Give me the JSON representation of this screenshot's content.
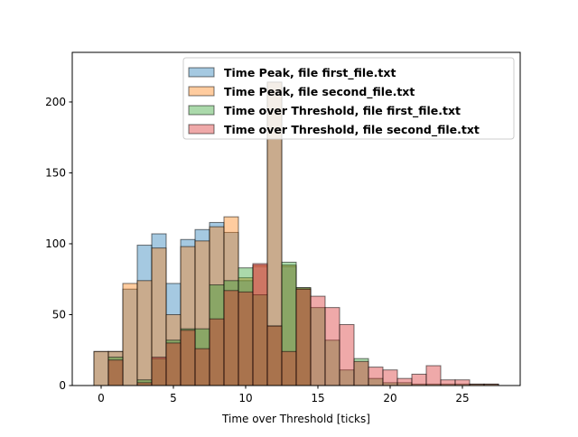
{
  "chart_data": {
    "type": "bar",
    "subtype": "overlapping-histogram",
    "xlabel": "Time over Threshold [ticks]",
    "ylabel": "",
    "title": "",
    "xlim": [
      -2,
      29
    ],
    "ylim": [
      0,
      235
    ],
    "xticks": [
      0,
      5,
      10,
      15,
      20,
      25
    ],
    "yticks": [
      0,
      50,
      100,
      150,
      200
    ],
    "bin_width": 1,
    "legend_position": "upper-right",
    "grid": false,
    "series": [
      {
        "name": "Time Peak, file first_file.txt",
        "color": "#1f77b4",
        "bins": [
          {
            "x": 0,
            "value": 24
          },
          {
            "x": 1,
            "value": 24
          },
          {
            "x": 2,
            "value": 68
          },
          {
            "x": 3,
            "value": 99
          },
          {
            "x": 4,
            "value": 107
          },
          {
            "x": 5,
            "value": 72
          },
          {
            "x": 6,
            "value": 103
          },
          {
            "x": 7,
            "value": 110
          },
          {
            "x": 8,
            "value": 115
          },
          {
            "x": 9,
            "value": 108
          },
          {
            "x": 10,
            "value": 74
          },
          {
            "x": 11,
            "value": 84
          },
          {
            "x": 12,
            "value": 214
          },
          {
            "x": 13,
            "value": 84
          },
          {
            "x": 14,
            "value": 68
          }
        ]
      },
      {
        "name": "Time Peak, file second_file.txt",
        "color": "#ff7f0e",
        "bins": [
          {
            "x": 0,
            "value": 24
          },
          {
            "x": 1,
            "value": 24
          },
          {
            "x": 2,
            "value": 72
          },
          {
            "x": 3,
            "value": 74
          },
          {
            "x": 4,
            "value": 97
          },
          {
            "x": 5,
            "value": 50
          },
          {
            "x": 6,
            "value": 98
          },
          {
            "x": 7,
            "value": 102
          },
          {
            "x": 8,
            "value": 112
          },
          {
            "x": 9,
            "value": 119
          },
          {
            "x": 10,
            "value": 76
          },
          {
            "x": 11,
            "value": 85
          },
          {
            "x": 12,
            "value": 214
          },
          {
            "x": 13,
            "value": 85
          },
          {
            "x": 14,
            "value": 69
          }
        ]
      },
      {
        "name": "Time over Threshold, file first_file.txt",
        "color": "#2ca02c",
        "bins": [
          {
            "x": 1,
            "value": 20
          },
          {
            "x": 3,
            "value": 4
          },
          {
            "x": 4,
            "value": 19
          },
          {
            "x": 5,
            "value": 32
          },
          {
            "x": 6,
            "value": 40
          },
          {
            "x": 7,
            "value": 40
          },
          {
            "x": 8,
            "value": 71
          },
          {
            "x": 9,
            "value": 74
          },
          {
            "x": 10,
            "value": 83
          },
          {
            "x": 11,
            "value": 64
          },
          {
            "x": 12,
            "value": 42
          },
          {
            "x": 13,
            "value": 87
          },
          {
            "x": 14,
            "value": 69
          },
          {
            "x": 15,
            "value": 55
          },
          {
            "x": 16,
            "value": 32
          },
          {
            "x": 17,
            "value": 11
          },
          {
            "x": 18,
            "value": 19
          },
          {
            "x": 19,
            "value": 5
          },
          {
            "x": 20,
            "value": 2
          },
          {
            "x": 21,
            "value": 2
          },
          {
            "x": 22,
            "value": 1
          },
          {
            "x": 23,
            "value": 1
          },
          {
            "x": 24,
            "value": 1
          },
          {
            "x": 25,
            "value": 1
          },
          {
            "x": 26,
            "value": 1
          },
          {
            "x": 27,
            "value": 1
          }
        ]
      },
      {
        "name": "Time over Threshold, file second_file.txt",
        "color": "#d62728",
        "bins": [
          {
            "x": 1,
            "value": 18
          },
          {
            "x": 3,
            "value": 2
          },
          {
            "x": 4,
            "value": 20
          },
          {
            "x": 5,
            "value": 30
          },
          {
            "x": 6,
            "value": 39
          },
          {
            "x": 7,
            "value": 26
          },
          {
            "x": 8,
            "value": 47
          },
          {
            "x": 9,
            "value": 67
          },
          {
            "x": 10,
            "value": 66
          },
          {
            "x": 11,
            "value": 86
          },
          {
            "x": 12,
            "value": 42
          },
          {
            "x": 13,
            "value": 24
          },
          {
            "x": 14,
            "value": 68
          },
          {
            "x": 15,
            "value": 63
          },
          {
            "x": 16,
            "value": 55
          },
          {
            "x": 17,
            "value": 43
          },
          {
            "x": 18,
            "value": 17
          },
          {
            "x": 19,
            "value": 13
          },
          {
            "x": 20,
            "value": 11
          },
          {
            "x": 21,
            "value": 5
          },
          {
            "x": 22,
            "value": 8
          },
          {
            "x": 23,
            "value": 14
          },
          {
            "x": 24,
            "value": 4
          },
          {
            "x": 25,
            "value": 4
          },
          {
            "x": 26,
            "value": 1
          },
          {
            "x": 27,
            "value": 1
          }
        ]
      }
    ]
  }
}
